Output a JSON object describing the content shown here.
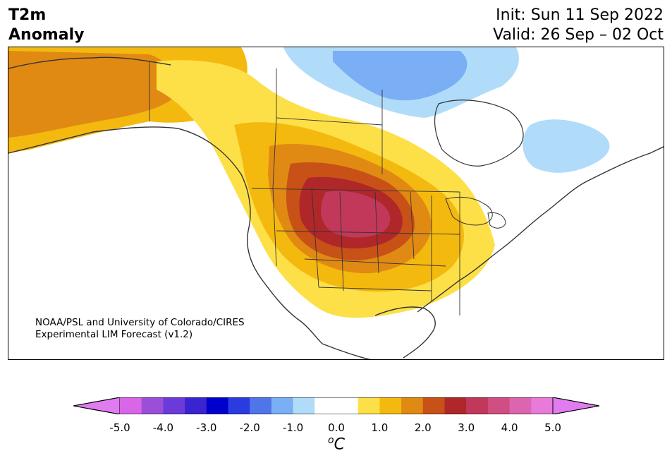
{
  "header": {
    "title": "T2m\nAnomaly",
    "init": "Init: Sun 11 Sep 2022",
    "valid": "Valid: 26 Sep – 02 Oct"
  },
  "map": {
    "credit_line1": "NOAA/PSL and University of Colorado/CIRES",
    "credit_line2": "Experimental LIM Forecast (v1.2)"
  },
  "colorbar": {
    "ticks": [
      "-5.0",
      "-4.0",
      "-3.0",
      "-2.0",
      "-1.0",
      "0.0",
      "1.0",
      "2.0",
      "3.0",
      "4.0",
      "5.0"
    ],
    "unit_base": "C",
    "unit_sup": "o",
    "colors": [
      "#d966e6",
      "#9b4fd9",
      "#6b3bd9",
      "#3a24d1",
      "#0000cc",
      "#2a3be0",
      "#4f76e8",
      "#7aaef5",
      "#b0dcfa",
      "#ffffff",
      "#ffffff",
      "#fde047",
      "#f4b90f",
      "#e08a14",
      "#c75117",
      "#b0272a",
      "#c2385a",
      "#d04e82",
      "#dc65b0",
      "#e87ad9"
    ],
    "extend_low_color": "#e07cf0",
    "extend_high_color": "#e07cf0"
  }
}
